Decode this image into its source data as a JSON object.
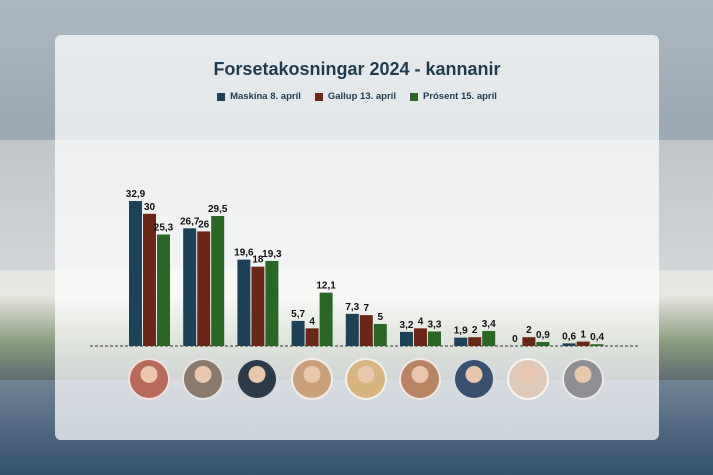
{
  "chart_data": {
    "type": "bar",
    "title": "Forsetakosningar 2024 - kannanir",
    "legend_position": "top",
    "ylim": [
      0,
      35
    ],
    "series": [
      {
        "name": "Maskína 8. apríl",
        "color": "#1d4157",
        "values": [
          32.9,
          26.7,
          19.6,
          5.7,
          7.3,
          3.2,
          1.9,
          0,
          0.6
        ],
        "labels": [
          "32,9",
          "26,7",
          "19,6",
          "5,7",
          "7,3",
          "3,2",
          "1,9",
          "0",
          "0,6"
        ]
      },
      {
        "name": "Gallup 13. apríl",
        "color": "#6a2617",
        "values": [
          30,
          26,
          18,
          4,
          7,
          4,
          2,
          2,
          1
        ],
        "labels": [
          "30",
          "26",
          "18",
          "4",
          "7",
          "4",
          "2",
          "2",
          "1"
        ]
      },
      {
        "name": "Prósent 15. apríl",
        "color": "#2a6624",
        "values": [
          25.3,
          29.5,
          19.3,
          12.1,
          5,
          3.3,
          3.4,
          0.9,
          0.4
        ],
        "labels": [
          "25,3",
          "29,5",
          "19,3",
          "12,1",
          "5",
          "3,3",
          "3,4",
          "0,9",
          "0,4"
        ]
      }
    ],
    "candidate_count": 9
  },
  "colors": {
    "title": "#1f3b4d",
    "avatar_tones": [
      "#b86b5a",
      "#8a7a6d",
      "#2c3a4a",
      "#c9a07a",
      "#d8b480",
      "#b98464",
      "#3a5070",
      "#e0c9b8",
      "#8f8f93"
    ]
  }
}
